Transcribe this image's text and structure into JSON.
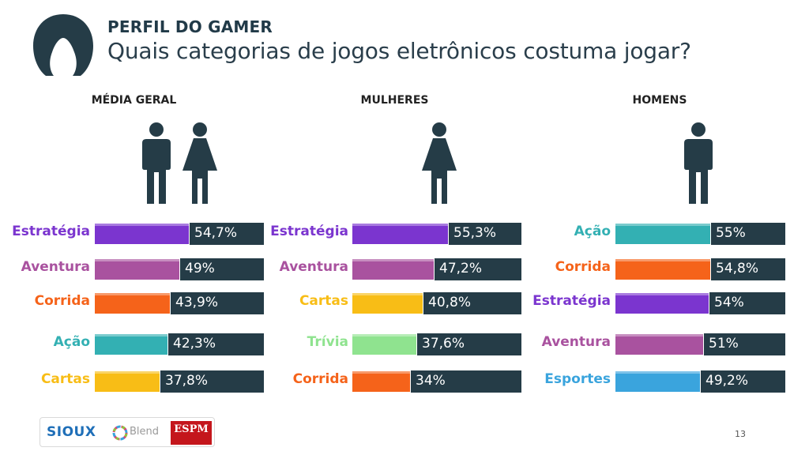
{
  "header": {
    "kicker": "PERFIL DO GAMER",
    "title": "Quais categorias de jogos eletrônicos costuma jogar?"
  },
  "colors": {
    "track": "#253c47",
    "figure": "#253c47",
    "Estratégia": "#7b35cf",
    "Aventura": "#a9529f",
    "Corrida": "#f5631a",
    "Ação": "#33b0b3",
    "Cartas": "#f8bd16",
    "Trívia": "#8fe38f",
    "Esportes": "#3aa4dd"
  },
  "chart_data": [
    {
      "type": "bar",
      "title": "MÉDIA GERAL",
      "icons": [
        "man-icon",
        "woman-icon"
      ],
      "categories": [
        "Estratégia",
        "Aventura",
        "Corrida",
        "Ação",
        "Cartas"
      ],
      "values": [
        54.7,
        49,
        43.9,
        42.3,
        37.8
      ],
      "labels": [
        "54,7%",
        "49%",
        "43,9%",
        "42,3%",
        "37,8%"
      ],
      "xlim": [
        0,
        100
      ]
    },
    {
      "type": "bar",
      "title": "MULHERES",
      "icons": [
        "woman-icon"
      ],
      "categories": [
        "Estratégia",
        "Aventura",
        "Cartas",
        "Trívia",
        "Corrida"
      ],
      "values": [
        55.3,
        47.2,
        40.8,
        37.6,
        34
      ],
      "labels": [
        "55,3%",
        "47,2%",
        "40,8%",
        "37,6%",
        "34%"
      ],
      "xlim": [
        0,
        100
      ]
    },
    {
      "type": "bar",
      "title": "HOMENS",
      "icons": [
        "man-icon"
      ],
      "categories": [
        "Ação",
        "Corrida",
        "Estratégia",
        "Aventura",
        "Esportes"
      ],
      "values": [
        55,
        54.8,
        54,
        51,
        49.2
      ],
      "labels": [
        "55%",
        "54,8%",
        "54%",
        "51%",
        "49,2%"
      ],
      "xlim": [
        0,
        100
      ]
    }
  ],
  "footer": {
    "logo_sioux": "SIOUX",
    "logo_blend": "Blend",
    "logo_espm": "ESPM",
    "page_number": "13"
  }
}
